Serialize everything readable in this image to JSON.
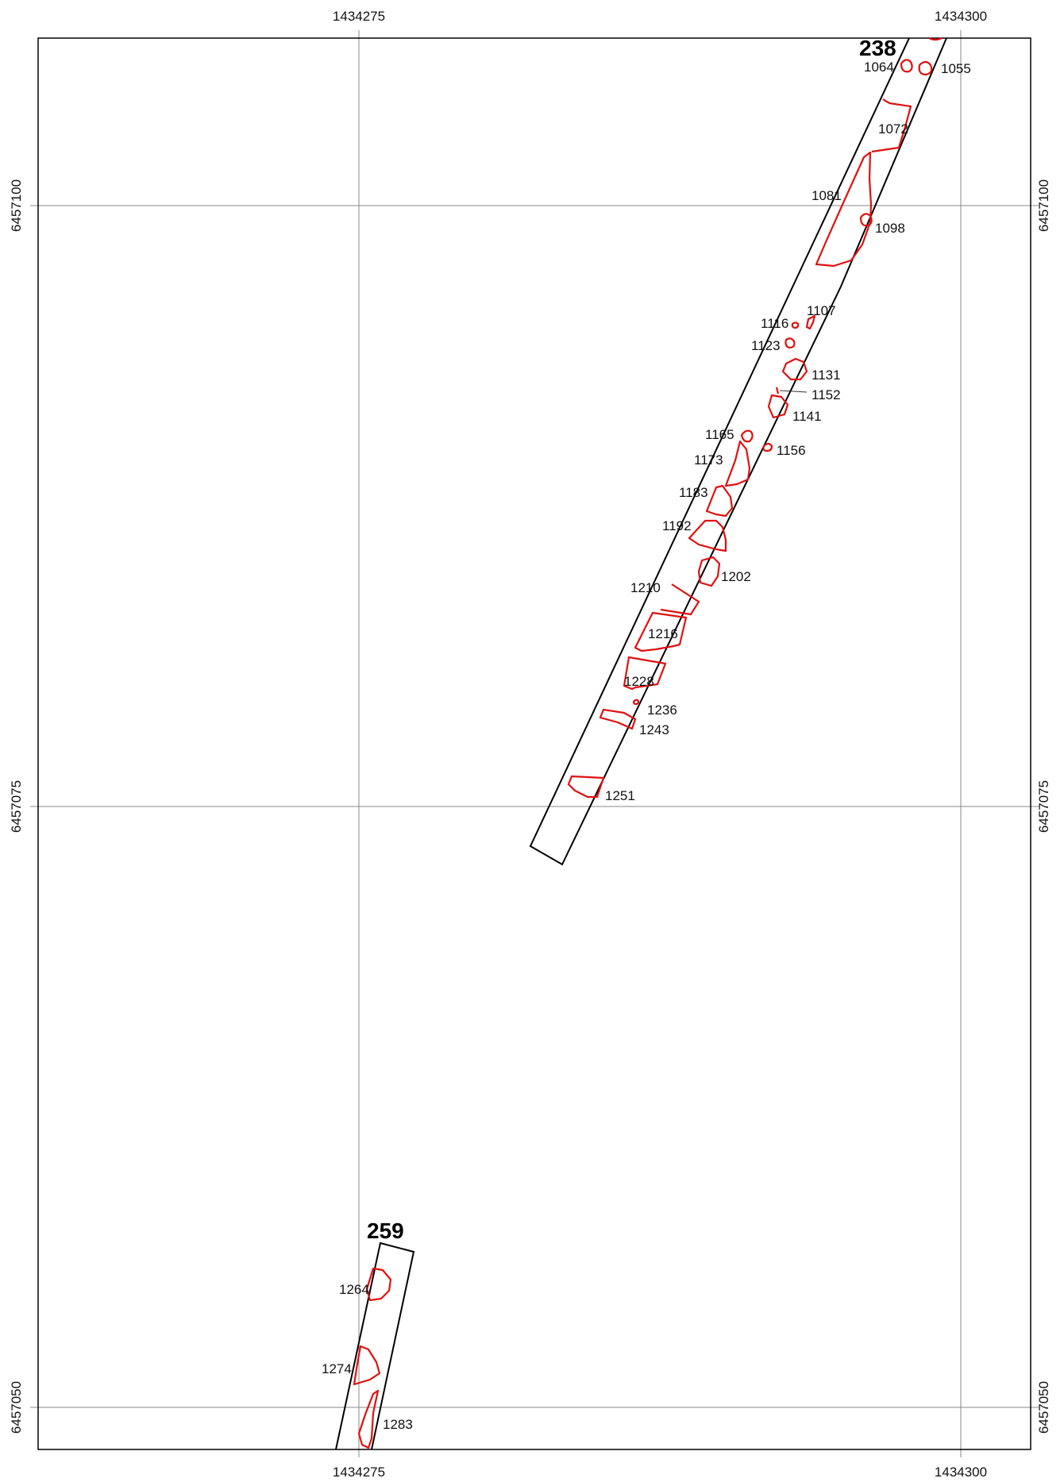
{
  "coordinates": {
    "x_left": "1434275",
    "x_right": "1434300",
    "y_top": "6457100",
    "y_middle": "6457075",
    "y_bottom": "6457050"
  },
  "trenches": [
    {
      "id": "238",
      "label": "238"
    },
    {
      "id": "259",
      "label": "259"
    }
  ],
  "features": [
    {
      "id": "1055",
      "label": "1055"
    },
    {
      "id": "1064",
      "label": "1064"
    },
    {
      "id": "1072",
      "label": "1072"
    },
    {
      "id": "1081",
      "label": "1081"
    },
    {
      "id": "1098",
      "label": "1098"
    },
    {
      "id": "1107",
      "label": "1107"
    },
    {
      "id": "1116",
      "label": "1116"
    },
    {
      "id": "1123",
      "label": "1123"
    },
    {
      "id": "1131",
      "label": "1131"
    },
    {
      "id": "1152",
      "label": "1152"
    },
    {
      "id": "1141",
      "label": "1141"
    },
    {
      "id": "1165",
      "label": "1165"
    },
    {
      "id": "1156",
      "label": "1156"
    },
    {
      "id": "1173",
      "label": "1173"
    },
    {
      "id": "1183",
      "label": "1183"
    },
    {
      "id": "1192",
      "label": "1192"
    },
    {
      "id": "1202",
      "label": "1202"
    },
    {
      "id": "1210",
      "label": "1210"
    },
    {
      "id": "1216",
      "label": "1216"
    },
    {
      "id": "1228",
      "label": "1228"
    },
    {
      "id": "1236",
      "label": "1236"
    },
    {
      "id": "1243",
      "label": "1243"
    },
    {
      "id": "1251",
      "label": "1251"
    },
    {
      "id": "1264",
      "label": "1264"
    },
    {
      "id": "1274",
      "label": "1274"
    },
    {
      "id": "1283",
      "label": "1283"
    }
  ],
  "colors": {
    "feature_outline": "#e01010",
    "trench_outline": "#000000",
    "grid": "#8a8a8a"
  }
}
